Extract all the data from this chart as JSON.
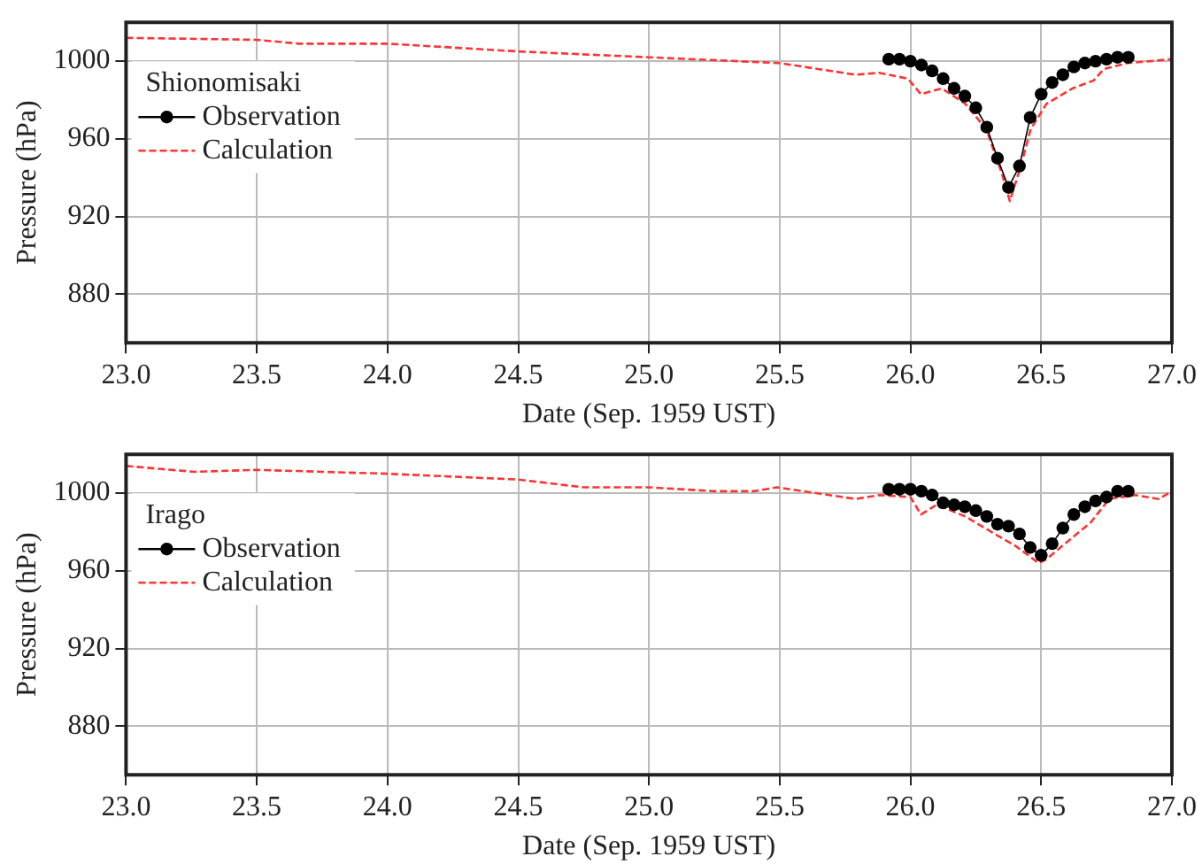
{
  "chart_data": [
    {
      "type": "line",
      "xlabel": "Date (Sep. 1959 UST)",
      "ylabel": "Pressure (hPa)",
      "legend_title": "Shionomisaki",
      "legend": "top left",
      "grid": true,
      "xlim": [
        23,
        27
      ],
      "xticks": [
        {
          "value": 23,
          "label": "23.0"
        },
        23.5,
        {
          "value": 24,
          "label": "24.0"
        },
        24.5,
        {
          "value": 25,
          "label": "25.0"
        },
        25.5,
        {
          "value": 26,
          "label": "26.0"
        },
        26.5,
        {
          "value": 27,
          "label": "27.0"
        }
      ],
      "ylim": [
        855,
        1020
      ],
      "yticks": [
        880,
        920,
        960,
        1000
      ],
      "series": [
        {
          "name": "Observation",
          "color": "#000000",
          "marker": "circle",
          "line_style": "solid",
          "x": [
            25.917,
            25.958,
            26.0,
            26.042,
            26.083,
            26.125,
            26.167,
            26.208,
            26.25,
            26.292,
            26.333,
            26.375,
            26.417,
            26.458,
            26.5,
            26.542,
            26.583,
            26.625,
            26.667,
            26.708,
            26.75,
            26.792,
            26.833
          ],
          "values": [
            1001,
            1001,
            1000,
            998,
            995,
            991,
            986,
            982,
            976,
            966,
            950,
            935,
            946,
            971,
            983,
            989,
            993,
            997,
            999,
            1000,
            1001,
            1002,
            1002
          ]
        },
        {
          "name": "Calculation",
          "color": "#ff3333",
          "marker": "none",
          "line_style": "dashed",
          "x": [
            23.0,
            23.5,
            23.66,
            24.0,
            24.5,
            25.0,
            25.5,
            25.79,
            25.88,
            25.99,
            26.04,
            26.12,
            26.21,
            26.29,
            26.35,
            26.38,
            26.42,
            26.46,
            26.52,
            26.62,
            26.7,
            26.74,
            26.83,
            27.0
          ],
          "values": [
            1012,
            1011,
            1009,
            1009,
            1005,
            1002,
            999,
            993,
            994,
            991,
            983,
            986,
            978,
            965,
            942,
            928,
            945,
            965,
            978,
            986,
            990,
            996,
            999,
            1001
          ]
        }
      ]
    },
    {
      "type": "line",
      "xlabel": "Date (Sep. 1959 UST)",
      "ylabel": "Pressure (hPa)",
      "legend_title": "Irago",
      "legend": "top left",
      "grid": true,
      "xlim": [
        23,
        27
      ],
      "xticks": [
        {
          "value": 23,
          "label": "23.0"
        },
        23.5,
        {
          "value": 24,
          "label": "24.0"
        },
        24.5,
        {
          "value": 25,
          "label": "25.0"
        },
        25.5,
        {
          "value": 26,
          "label": "26.0"
        },
        26.5,
        {
          "value": 27,
          "label": "27.0"
        }
      ],
      "ylim": [
        855,
        1020
      ],
      "yticks": [
        880,
        920,
        960,
        1000
      ],
      "series": [
        {
          "name": "Observation",
          "color": "#000000",
          "marker": "circle",
          "line_style": "solid",
          "x": [
            25.917,
            25.958,
            26.0,
            26.042,
            26.083,
            26.125,
            26.167,
            26.208,
            26.25,
            26.292,
            26.333,
            26.375,
            26.417,
            26.458,
            26.5,
            26.542,
            26.583,
            26.625,
            26.667,
            26.708,
            26.75,
            26.792,
            26.833
          ],
          "values": [
            1002,
            1002,
            1002,
            1001,
            999,
            995,
            994,
            993,
            991,
            988,
            984,
            983,
            979,
            972,
            968,
            974,
            982,
            989,
            993,
            996,
            998,
            1001,
            1001
          ]
        },
        {
          "name": "Calculation",
          "color": "#ff3333",
          "marker": "none",
          "line_style": "dashed",
          "x": [
            23.0,
            23.26,
            23.5,
            24.0,
            24.5,
            24.75,
            25.0,
            25.25,
            25.4,
            25.49,
            25.79,
            25.88,
            26.0,
            26.04,
            26.1,
            26.21,
            26.31,
            26.4,
            26.49,
            26.52,
            26.6,
            26.69,
            26.76,
            26.86,
            26.95,
            27.0
          ],
          "values": [
            1014,
            1011,
            1012,
            1010,
            1007,
            1003,
            1003,
            1001,
            1001,
            1003,
            997,
            999,
            998,
            989,
            994,
            988,
            980,
            973,
            964,
            966,
            975,
            985,
            997,
            999,
            997,
            1001
          ]
        }
      ]
    }
  ]
}
